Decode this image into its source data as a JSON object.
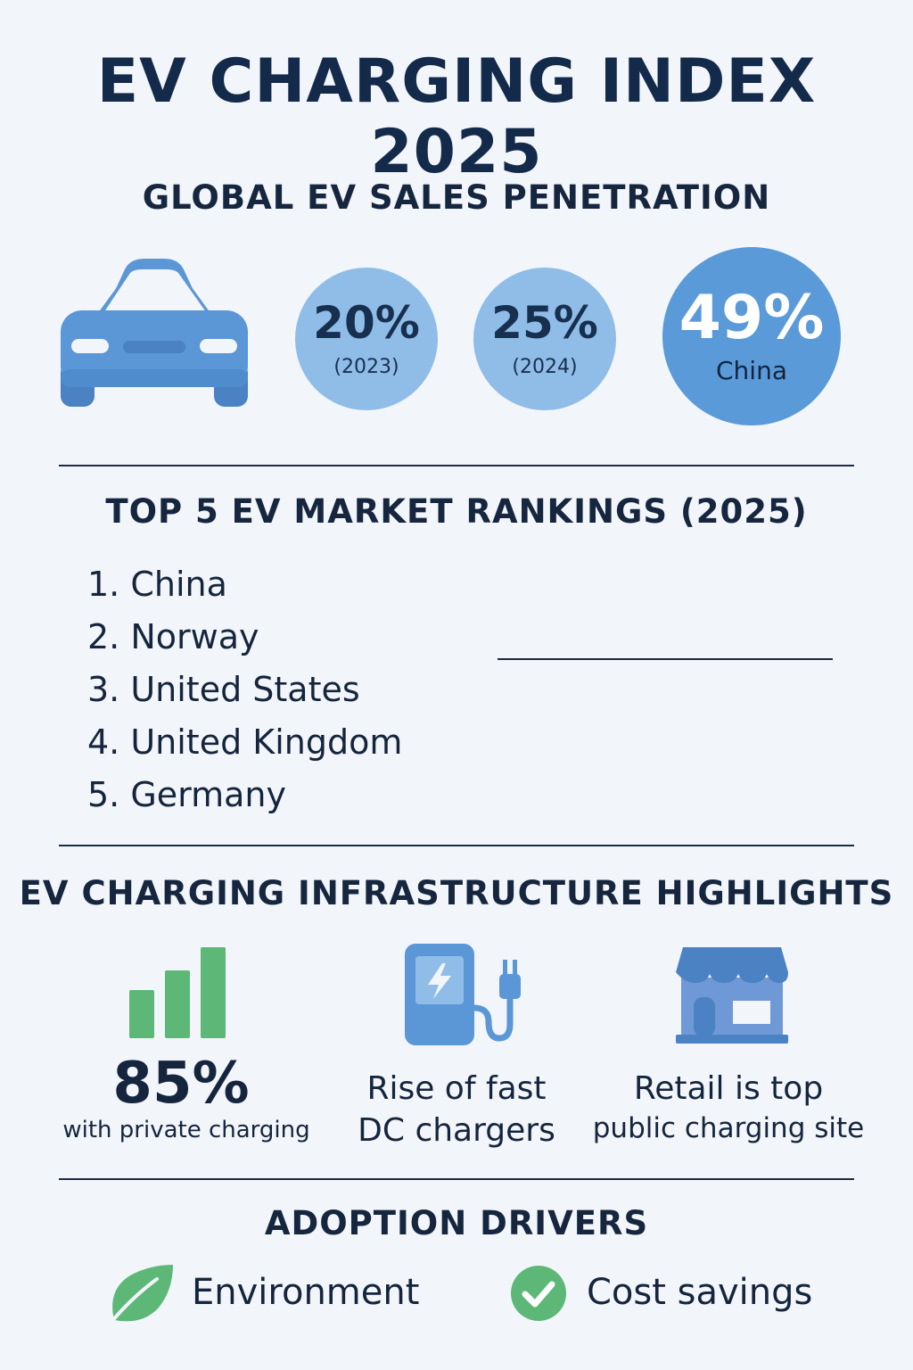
{
  "title": "EV CHARGING INDEX  2025",
  "sales": {
    "heading": "GLOBAL EV SALES PENETRATION",
    "stats": [
      {
        "value": "20%",
        "label": "(2023)"
      },
      {
        "value": "25%",
        "label": "(2024)"
      },
      {
        "value": "49%",
        "label": "China"
      }
    ],
    "icon": "car-icon",
    "colors": {
      "car": "#5b96d6",
      "light_bubble": "#8fbde8",
      "dark_bubble": "#5a9ad9"
    }
  },
  "rankings": {
    "heading": "TOP 5 EV MARKET RANKINGS (2025)",
    "items": [
      "1. China",
      "2. Norway",
      "3. United States",
      "4. United Kingdom",
      "5. Germany"
    ]
  },
  "infrastructure": {
    "heading": "EV CHARGING INFRASTRUCTURE HIGHLIGHTS",
    "private": {
      "value": "85%",
      "label": "with private charging",
      "icon": "bar-chart-icon"
    },
    "fast": {
      "line1": "Rise of fast",
      "line2": "DC chargers",
      "icon": "charging-station-icon"
    },
    "retail": {
      "line1": "Retail is top",
      "line2": "public charging site",
      "icon": "storefront-icon"
    },
    "colors": {
      "green": "#5db878",
      "blue": "#5b96d6"
    }
  },
  "drivers": {
    "heading": "ADOPTION DRIVERS",
    "items": [
      {
        "label": "Environment",
        "icon": "leaf-icon"
      },
      {
        "label": "Cost savings",
        "icon": "checkmark-icon"
      }
    ]
  }
}
